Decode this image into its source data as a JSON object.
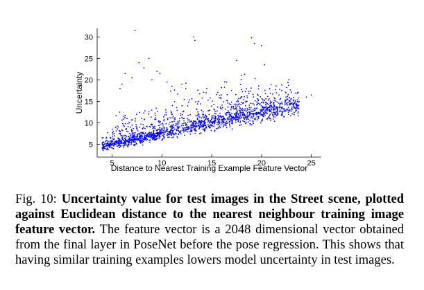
{
  "chart_data": {
    "type": "scatter",
    "title": "",
    "xlabel": "Distance to Nearest Training Example Feature Vector",
    "ylabel": "Uncertainty",
    "xlim": [
      3.5,
      26
    ],
    "ylim": [
      2,
      32
    ],
    "xticks": [
      5,
      10,
      15,
      20,
      25
    ],
    "yticks": [
      5,
      10,
      15,
      20,
      25,
      30
    ],
    "grid": false,
    "marker_color": "#0000ff",
    "trend": {
      "x": [
        4,
        24
      ],
      "y": [
        4.5,
        14.5
      ]
    },
    "outliers": [
      {
        "x": 7.3,
        "y": 31.5
      },
      {
        "x": 13.2,
        "y": 30.0
      },
      {
        "x": 13.3,
        "y": 29.2
      },
      {
        "x": 19.0,
        "y": 29.8
      },
      {
        "x": 19.3,
        "y": 28.5
      },
      {
        "x": 20.0,
        "y": 28.0
      },
      {
        "x": 8.7,
        "y": 25.0
      },
      {
        "x": 7.7,
        "y": 24.0
      },
      {
        "x": 17.5,
        "y": 24.5
      },
      {
        "x": 20.3,
        "y": 23.5
      },
      {
        "x": 8.2,
        "y": 22.8
      },
      {
        "x": 6.3,
        "y": 21.5
      },
      {
        "x": 9.5,
        "y": 22.0
      },
      {
        "x": 9.8,
        "y": 21.5
      },
      {
        "x": 18.0,
        "y": 21.0
      },
      {
        "x": 18.3,
        "y": 21.3
      },
      {
        "x": 7.0,
        "y": 20.5
      },
      {
        "x": 9.0,
        "y": 20.0
      },
      {
        "x": 10.5,
        "y": 19.5
      },
      {
        "x": 16.5,
        "y": 19.5
      },
      {
        "x": 6.0,
        "y": 19.0
      },
      {
        "x": 12.0,
        "y": 19.0
      },
      {
        "x": 5.8,
        "y": 18.0
      },
      {
        "x": 11.0,
        "y": 18.5
      },
      {
        "x": 14.5,
        "y": 18.0
      },
      {
        "x": 17.0,
        "y": 17.5
      },
      {
        "x": 21.5,
        "y": 17.0
      },
      {
        "x": 25.0,
        "y": 16.5
      },
      {
        "x": 24.5,
        "y": 16.0
      }
    ]
  },
  "caption": {
    "label": "Fig. 10:",
    "bold_text": "Uncertainty value for test images in the Street scene, plotted against Euclidean distance to the nearest neighbour training image feature vector.",
    "body_text": "The feature vector is a 2048 dimensional vector obtained from the final layer in PoseNet before the pose regression. This shows that having similar training examples lowers model uncertainty in test images."
  }
}
